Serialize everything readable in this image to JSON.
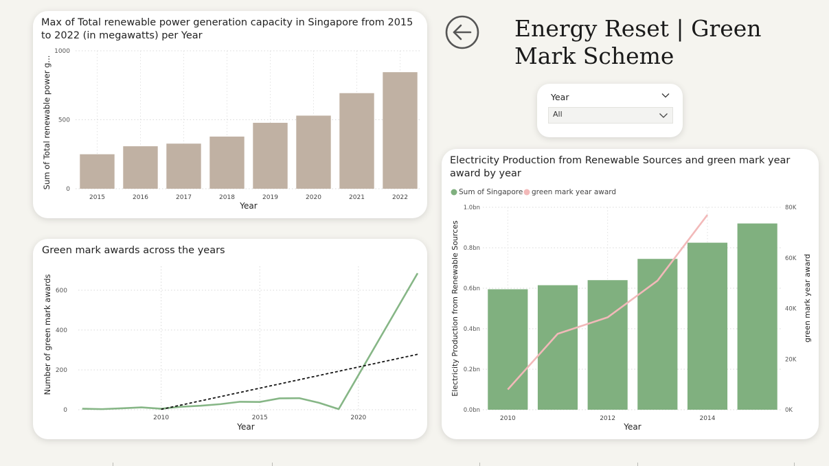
{
  "header": {
    "title": "Energy Reset | Green Mark Scheme",
    "back_icon": "arrow-left-circle-icon"
  },
  "slicer": {
    "label": "Year",
    "value": "All"
  },
  "chart_data": [
    {
      "id": "capacity",
      "type": "bar",
      "title": "Max of Total renewable power generation capacity in Singapore from 2015 to 2022 (in megawatts) per Year",
      "xlabel": "Year",
      "ylabel": "Sum of Total renewable power g...",
      "categories": [
        "2015",
        "2016",
        "2017",
        "2018",
        "2019",
        "2020",
        "2021",
        "2022"
      ],
      "values": [
        250,
        308,
        327,
        378,
        478,
        530,
        693,
        845
      ],
      "ylim": [
        0,
        1000
      ],
      "yticks": [
        0,
        500,
        1000
      ],
      "ytick_labels": [
        "0",
        "500",
        "1000"
      ],
      "color": "#c0b1a3",
      "grid": true
    },
    {
      "id": "awards",
      "type": "line",
      "title": "Green mark awards across the years",
      "xlabel": "Year",
      "ylabel": "Number of green mark awards",
      "xlim": [
        2005.8,
        2023
      ],
      "ylim": [
        0,
        720
      ],
      "xticks": [
        2010,
        2015,
        2020
      ],
      "xtick_labels": [
        "2010",
        "2015",
        "2020"
      ],
      "yticks": [
        0,
        200,
        400,
        600
      ],
      "ytick_labels": [
        "0",
        "200",
        "400",
        "600"
      ],
      "series": [
        {
          "x": [
            2006,
            2007,
            2008,
            2009,
            2010,
            2011,
            2012,
            2013,
            2014,
            2015,
            2016,
            2017,
            2018,
            2019,
            2023
          ],
          "y": [
            5,
            3,
            7,
            12,
            5,
            15,
            20,
            28,
            40,
            39,
            57,
            58,
            35,
            3,
            685
          ],
          "color": "#86b686"
        }
      ],
      "trendline": {
        "x": [
          2010,
          2023
        ],
        "y": [
          2,
          278
        ],
        "color": "#111111"
      },
      "grid": true
    },
    {
      "id": "electricity",
      "type": "bar",
      "title": "Electricity Production from Renewable Sources and green mark year award by year",
      "xlabel": "Year",
      "ylabel": "Electricity Production from Renewable Sources",
      "ylabel_right": "green mark year award",
      "legend": [
        "Sum of Singapore",
        "green mark year award"
      ],
      "legend_position": "top-left",
      "x": [
        2010,
        2011,
        2012,
        2013,
        2014,
        2015
      ],
      "xticks": [
        2010,
        2012,
        2014
      ],
      "xtick_labels": [
        "2010",
        "2012",
        "2014"
      ],
      "bar_values": [
        0.595,
        0.615,
        0.64,
        0.745,
        0.825,
        0.92
      ],
      "bar_color": "#80b07f",
      "ylim": [
        0,
        1.0
      ],
      "yticks": [
        0,
        0.2,
        0.4,
        0.6,
        0.8,
        1.0
      ],
      "ytick_labels": [
        "0.0bn",
        "0.2bn",
        "0.4bn",
        "0.6bn",
        "0.8bn",
        "1.0bn"
      ],
      "line": {
        "x": [
          2010,
          2011,
          2012,
          2013,
          2014
        ],
        "y": [
          8000,
          30000,
          36500,
          51000,
          77000
        ],
        "color": "#f2b9b9"
      },
      "y2lim": [
        0,
        80000
      ],
      "y2ticks": [
        0,
        20000,
        40000,
        60000,
        80000
      ],
      "y2tick_labels": [
        "0K",
        "20K",
        "40K",
        "60K",
        "80K"
      ],
      "grid": true
    }
  ]
}
